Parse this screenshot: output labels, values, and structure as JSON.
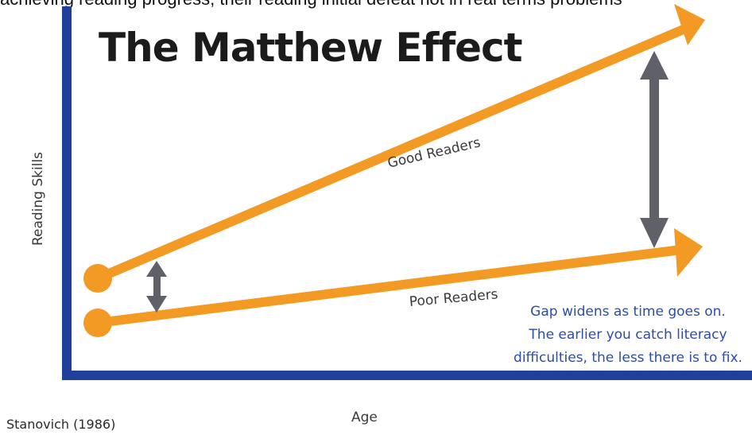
{
  "cropped_caption": "achieving reading progress, their reading initial defeat not in real terms problems",
  "title": "The Matthew Effect",
  "y_axis_label": "Reading Skills",
  "x_axis_label": "Age",
  "citation": "Stanovich (1986)",
  "lines": {
    "good": "Good Readers",
    "poor": "Poor Readers"
  },
  "note": {
    "line1": "Gap widens as time goes on.",
    "line2": "The earlier you catch literacy",
    "line3": "difficulties, the less there is to fix."
  },
  "colors": {
    "axis": "#1f3f9a",
    "arrow": "#f39a24",
    "gap_arrow": "#5f6068",
    "note_text": "#2c4da8"
  },
  "icons": {
    "small_gap": "double-arrow-icon",
    "large_gap": "double-arrow-icon"
  }
}
